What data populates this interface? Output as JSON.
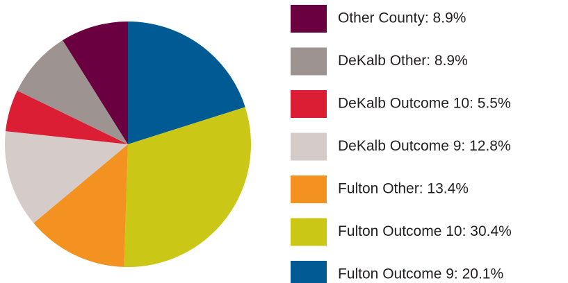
{
  "chart_data": {
    "type": "pie",
    "categories": [
      "Other County:  8.9%",
      "DeKalb Other:  8.9%",
      "DeKalb Outcome 10:  5.5%",
      "DeKalb Outcome 9:  12.8%",
      "Fulton Other:  13.4%",
      "Fulton Outcome 10:  30.4%",
      "Fulton Outcome 9:  20.1%"
    ],
    "values": [
      8.9,
      8.9,
      5.5,
      12.8,
      13.4,
      30.4,
      20.1
    ],
    "colors": [
      "#6b0040",
      "#9d9390",
      "#dc1e35",
      "#d5ccc9",
      "#f39221",
      "#cac716",
      "#005a94"
    ],
    "legend": "right"
  }
}
